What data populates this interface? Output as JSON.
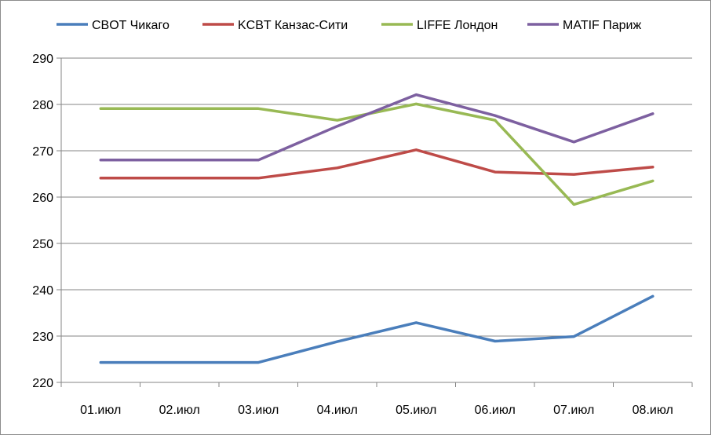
{
  "chart_data": {
    "type": "line",
    "categories": [
      "01.июл",
      "02.июл",
      "03.июл",
      "04.июл",
      "05.июл",
      "06.июл",
      "07.июл",
      "08.июл"
    ],
    "series": [
      {
        "name": "CBOT Чикаго",
        "color": "#4A7EBB",
        "values": [
          224.3,
          224.3,
          224.3,
          228.8,
          232.9,
          228.9,
          229.9,
          238.6
        ]
      },
      {
        "name": "KCBT Канзас-Сити",
        "color": "#BE4B48",
        "values": [
          264.1,
          264.1,
          264.1,
          266.3,
          270.2,
          265.4,
          264.9,
          266.5
        ]
      },
      {
        "name": "LIFFE Лондон",
        "color": "#98B954",
        "values": [
          279.1,
          279.1,
          279.1,
          276.6,
          280.1,
          276.6,
          258.4,
          263.5
        ]
      },
      {
        "name": "MATIF Париж",
        "color": "#7D60A0",
        "values": [
          268.0,
          268.0,
          268.0,
          275.3,
          282.1,
          277.6,
          271.9,
          278.0
        ]
      }
    ],
    "y_ticks": [
      "220",
      "230",
      "240",
      "250",
      "260",
      "270",
      "280",
      "290"
    ],
    "ylim": [
      220,
      290
    ],
    "grid": "horizontal",
    "legend_position": "top",
    "gridline_color": "#868686",
    "title": "",
    "xlabel": "",
    "ylabel": ""
  }
}
